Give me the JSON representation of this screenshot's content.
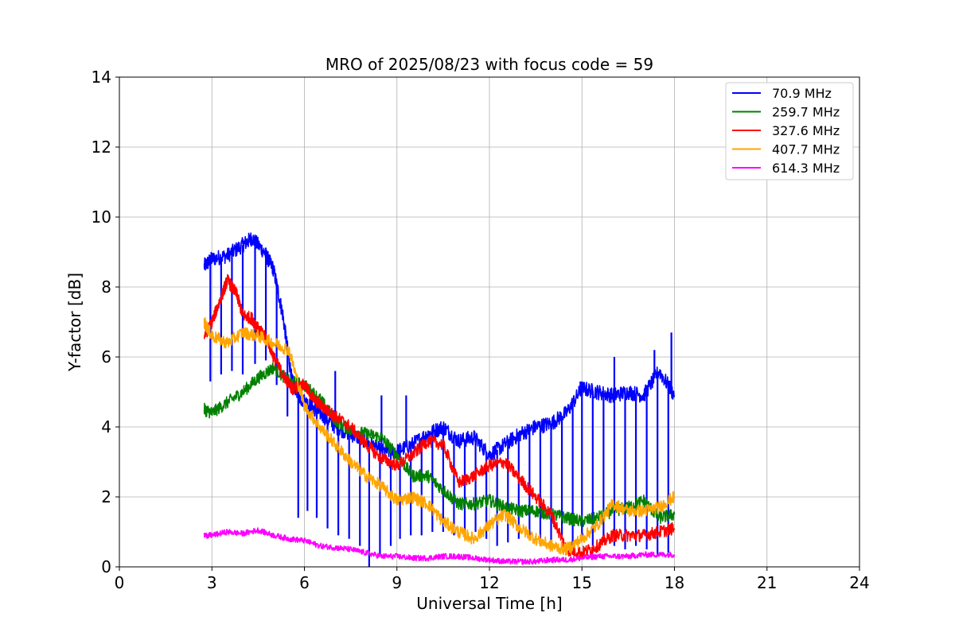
{
  "chart_data": {
    "type": "line",
    "title": "MRO of 2025/08/23 with focus code = 59",
    "xlabel": "Universal Time [h]",
    "ylabel": "Y-factor [dB]",
    "xlim": [
      0,
      24
    ],
    "ylim": [
      0,
      14
    ],
    "xticks": [
      0,
      3,
      6,
      9,
      12,
      15,
      18,
      21,
      24
    ],
    "yticks": [
      0,
      2,
      4,
      6,
      8,
      10,
      12,
      14
    ],
    "grid": true,
    "legend_position": "top-right",
    "series": [
      {
        "name": "70.9 MHz",
        "legend_label": " 70.9 MHz",
        "color": "#0000ff",
        "x": [
          2.75,
          3.0,
          3.5,
          4.0,
          4.3,
          4.7,
          5.0,
          5.3,
          5.6,
          5.9,
          6.2,
          6.5,
          7.0,
          7.5,
          8.0,
          8.5,
          9.0,
          9.5,
          10.0,
          10.5,
          11.0,
          11.5,
          12.0,
          12.5,
          13.0,
          13.5,
          14.0,
          14.5,
          15.0,
          15.5,
          16.0,
          16.5,
          17.0,
          17.5,
          18.0
        ],
        "y": [
          8.6,
          8.8,
          8.9,
          9.2,
          9.4,
          9.0,
          8.5,
          7.2,
          5.3,
          4.8,
          4.6,
          4.4,
          4.0,
          3.8,
          3.6,
          3.3,
          3.3,
          3.5,
          3.8,
          4.0,
          3.6,
          3.7,
          3.2,
          3.5,
          3.8,
          4.0,
          4.1,
          4.4,
          5.1,
          5.0,
          4.9,
          5.0,
          4.9,
          5.6,
          4.9
        ],
        "dips": [
          {
            "x": 2.95,
            "y": 5.3
          },
          {
            "x": 3.3,
            "y": 5.5
          },
          {
            "x": 3.65,
            "y": 5.6
          },
          {
            "x": 4.0,
            "y": 5.5
          },
          {
            "x": 4.4,
            "y": 5.8
          },
          {
            "x": 4.75,
            "y": 5.9
          },
          {
            "x": 5.1,
            "y": 5.2
          },
          {
            "x": 5.45,
            "y": 4.3
          },
          {
            "x": 5.8,
            "y": 1.4
          },
          {
            "x": 6.1,
            "y": 1.6
          },
          {
            "x": 6.4,
            "y": 1.4
          },
          {
            "x": 6.75,
            "y": 1.1
          },
          {
            "x": 7.1,
            "y": 0.9
          },
          {
            "x": 7.45,
            "y": 0.8
          },
          {
            "x": 7.8,
            "y": 0.6
          },
          {
            "x": 8.1,
            "y": 0.0
          },
          {
            "x": 8.45,
            "y": 0.3
          },
          {
            "x": 8.8,
            "y": 0.6
          },
          {
            "x": 9.1,
            "y": 0.8
          },
          {
            "x": 9.45,
            "y": 0.9
          },
          {
            "x": 9.8,
            "y": 0.9
          },
          {
            "x": 10.15,
            "y": 1.0
          },
          {
            "x": 10.5,
            "y": 1.0
          },
          {
            "x": 10.85,
            "y": 0.9
          },
          {
            "x": 11.2,
            "y": 1.0
          },
          {
            "x": 11.55,
            "y": 1.0
          },
          {
            "x": 11.9,
            "y": 0.8
          },
          {
            "x": 12.25,
            "y": 0.6
          },
          {
            "x": 12.6,
            "y": 0.7
          },
          {
            "x": 12.95,
            "y": 0.8
          },
          {
            "x": 13.3,
            "y": 0.9
          },
          {
            "x": 13.65,
            "y": 0.6
          },
          {
            "x": 14.0,
            "y": 0.7
          },
          {
            "x": 14.35,
            "y": 0.8
          },
          {
            "x": 14.7,
            "y": 0.6
          },
          {
            "x": 15.0,
            "y": 0.9
          },
          {
            "x": 15.35,
            "y": 0.6
          },
          {
            "x": 15.7,
            "y": 0.7
          },
          {
            "x": 16.05,
            "y": 0.6
          },
          {
            "x": 16.4,
            "y": 0.5
          },
          {
            "x": 16.75,
            "y": 0.6
          },
          {
            "x": 17.1,
            "y": 0.5
          },
          {
            "x": 17.45,
            "y": 0.3
          },
          {
            "x": 17.8,
            "y": 0.4
          }
        ],
        "spikes": [
          {
            "x": 7.0,
            "y": 5.6
          },
          {
            "x": 8.5,
            "y": 4.9
          },
          {
            "x": 9.3,
            "y": 4.9
          },
          {
            "x": 14.95,
            "y": 5.3
          },
          {
            "x": 16.05,
            "y": 6.0
          },
          {
            "x": 17.35,
            "y": 6.2
          },
          {
            "x": 17.9,
            "y": 6.7
          }
        ]
      },
      {
        "name": "259.7 MHz",
        "color": "#008000",
        "x": [
          2.75,
          3.0,
          3.5,
          4.0,
          4.5,
          5.0,
          5.5,
          6.0,
          6.5,
          7.0,
          7.5,
          8.0,
          8.5,
          9.0,
          9.5,
          10.0,
          10.5,
          11.0,
          11.5,
          12.0,
          12.5,
          13.0,
          13.5,
          14.0,
          14.5,
          15.0,
          15.5,
          16.0,
          16.5,
          17.0,
          17.5,
          18.0
        ],
        "y": [
          4.5,
          4.4,
          4.7,
          5.0,
          5.4,
          5.7,
          5.3,
          5.2,
          4.8,
          4.2,
          3.9,
          3.8,
          3.7,
          3.2,
          2.6,
          2.6,
          2.2,
          1.8,
          1.8,
          1.9,
          1.7,
          1.6,
          1.6,
          1.5,
          1.4,
          1.3,
          1.4,
          1.6,
          1.7,
          1.9,
          1.4,
          1.5
        ]
      },
      {
        "name": "327.6 MHz",
        "color": "#ff0000",
        "x": [
          2.75,
          3.0,
          3.3,
          3.5,
          3.8,
          4.0,
          4.3,
          4.5,
          4.8,
          5.0,
          5.3,
          5.6,
          6.0,
          6.3,
          6.7,
          7.0,
          7.5,
          8.0,
          8.5,
          9.0,
          9.5,
          10.0,
          10.5,
          11.0,
          11.5,
          12.0,
          12.5,
          13.0,
          13.5,
          14.0,
          14.5,
          15.0,
          15.5,
          16.0,
          16.5,
          17.0,
          17.5,
          18.0
        ],
        "y": [
          6.6,
          7.0,
          7.7,
          8.2,
          7.8,
          7.2,
          7.1,
          6.8,
          6.5,
          6.0,
          5.5,
          5.1,
          5.2,
          4.8,
          4.5,
          4.3,
          4.0,
          3.5,
          3.1,
          2.9,
          3.2,
          3.6,
          3.5,
          2.4,
          2.6,
          2.9,
          3.0,
          2.5,
          2.0,
          1.5,
          0.5,
          0.4,
          0.6,
          0.9,
          0.9,
          0.9,
          1.0,
          1.1
        ]
      },
      {
        "name": "407.7 MHz",
        "color": "#ffa500",
        "x": [
          2.75,
          3.0,
          3.5,
          4.0,
          4.5,
          5.0,
          5.5,
          6.0,
          6.5,
          7.0,
          7.5,
          8.0,
          8.5,
          9.0,
          9.5,
          10.0,
          10.5,
          11.0,
          11.5,
          12.0,
          12.5,
          13.0,
          13.5,
          14.0,
          14.5,
          15.0,
          15.5,
          16.0,
          16.5,
          17.0,
          17.5,
          18.0
        ],
        "y": [
          7.0,
          6.6,
          6.4,
          6.7,
          6.6,
          6.4,
          6.2,
          4.6,
          4.0,
          3.5,
          3.0,
          2.6,
          2.3,
          1.9,
          2.0,
          1.8,
          1.3,
          1.0,
          0.8,
          1.2,
          1.5,
          1.1,
          0.8,
          0.6,
          0.5,
          0.8,
          1.2,
          1.8,
          1.6,
          1.6,
          1.7,
          2.0
        ]
      },
      {
        "name": "614.3 MHz",
        "color": "#ff00ff",
        "x": [
          2.75,
          3.0,
          3.5,
          4.0,
          4.5,
          5.0,
          5.5,
          6.0,
          6.5,
          7.0,
          7.5,
          8.0,
          8.5,
          9.0,
          9.5,
          10.0,
          10.5,
          11.0,
          11.5,
          12.0,
          12.5,
          13.0,
          13.5,
          14.0,
          14.5,
          15.0,
          15.5,
          16.0,
          16.5,
          17.0,
          17.5,
          18.0
        ],
        "y": [
          0.9,
          0.9,
          1.0,
          0.95,
          1.05,
          0.9,
          0.8,
          0.75,
          0.6,
          0.55,
          0.5,
          0.4,
          0.3,
          0.3,
          0.25,
          0.25,
          0.3,
          0.3,
          0.25,
          0.2,
          0.15,
          0.15,
          0.15,
          0.2,
          0.2,
          0.25,
          0.3,
          0.3,
          0.3,
          0.35,
          0.35,
          0.35
        ]
      }
    ]
  }
}
